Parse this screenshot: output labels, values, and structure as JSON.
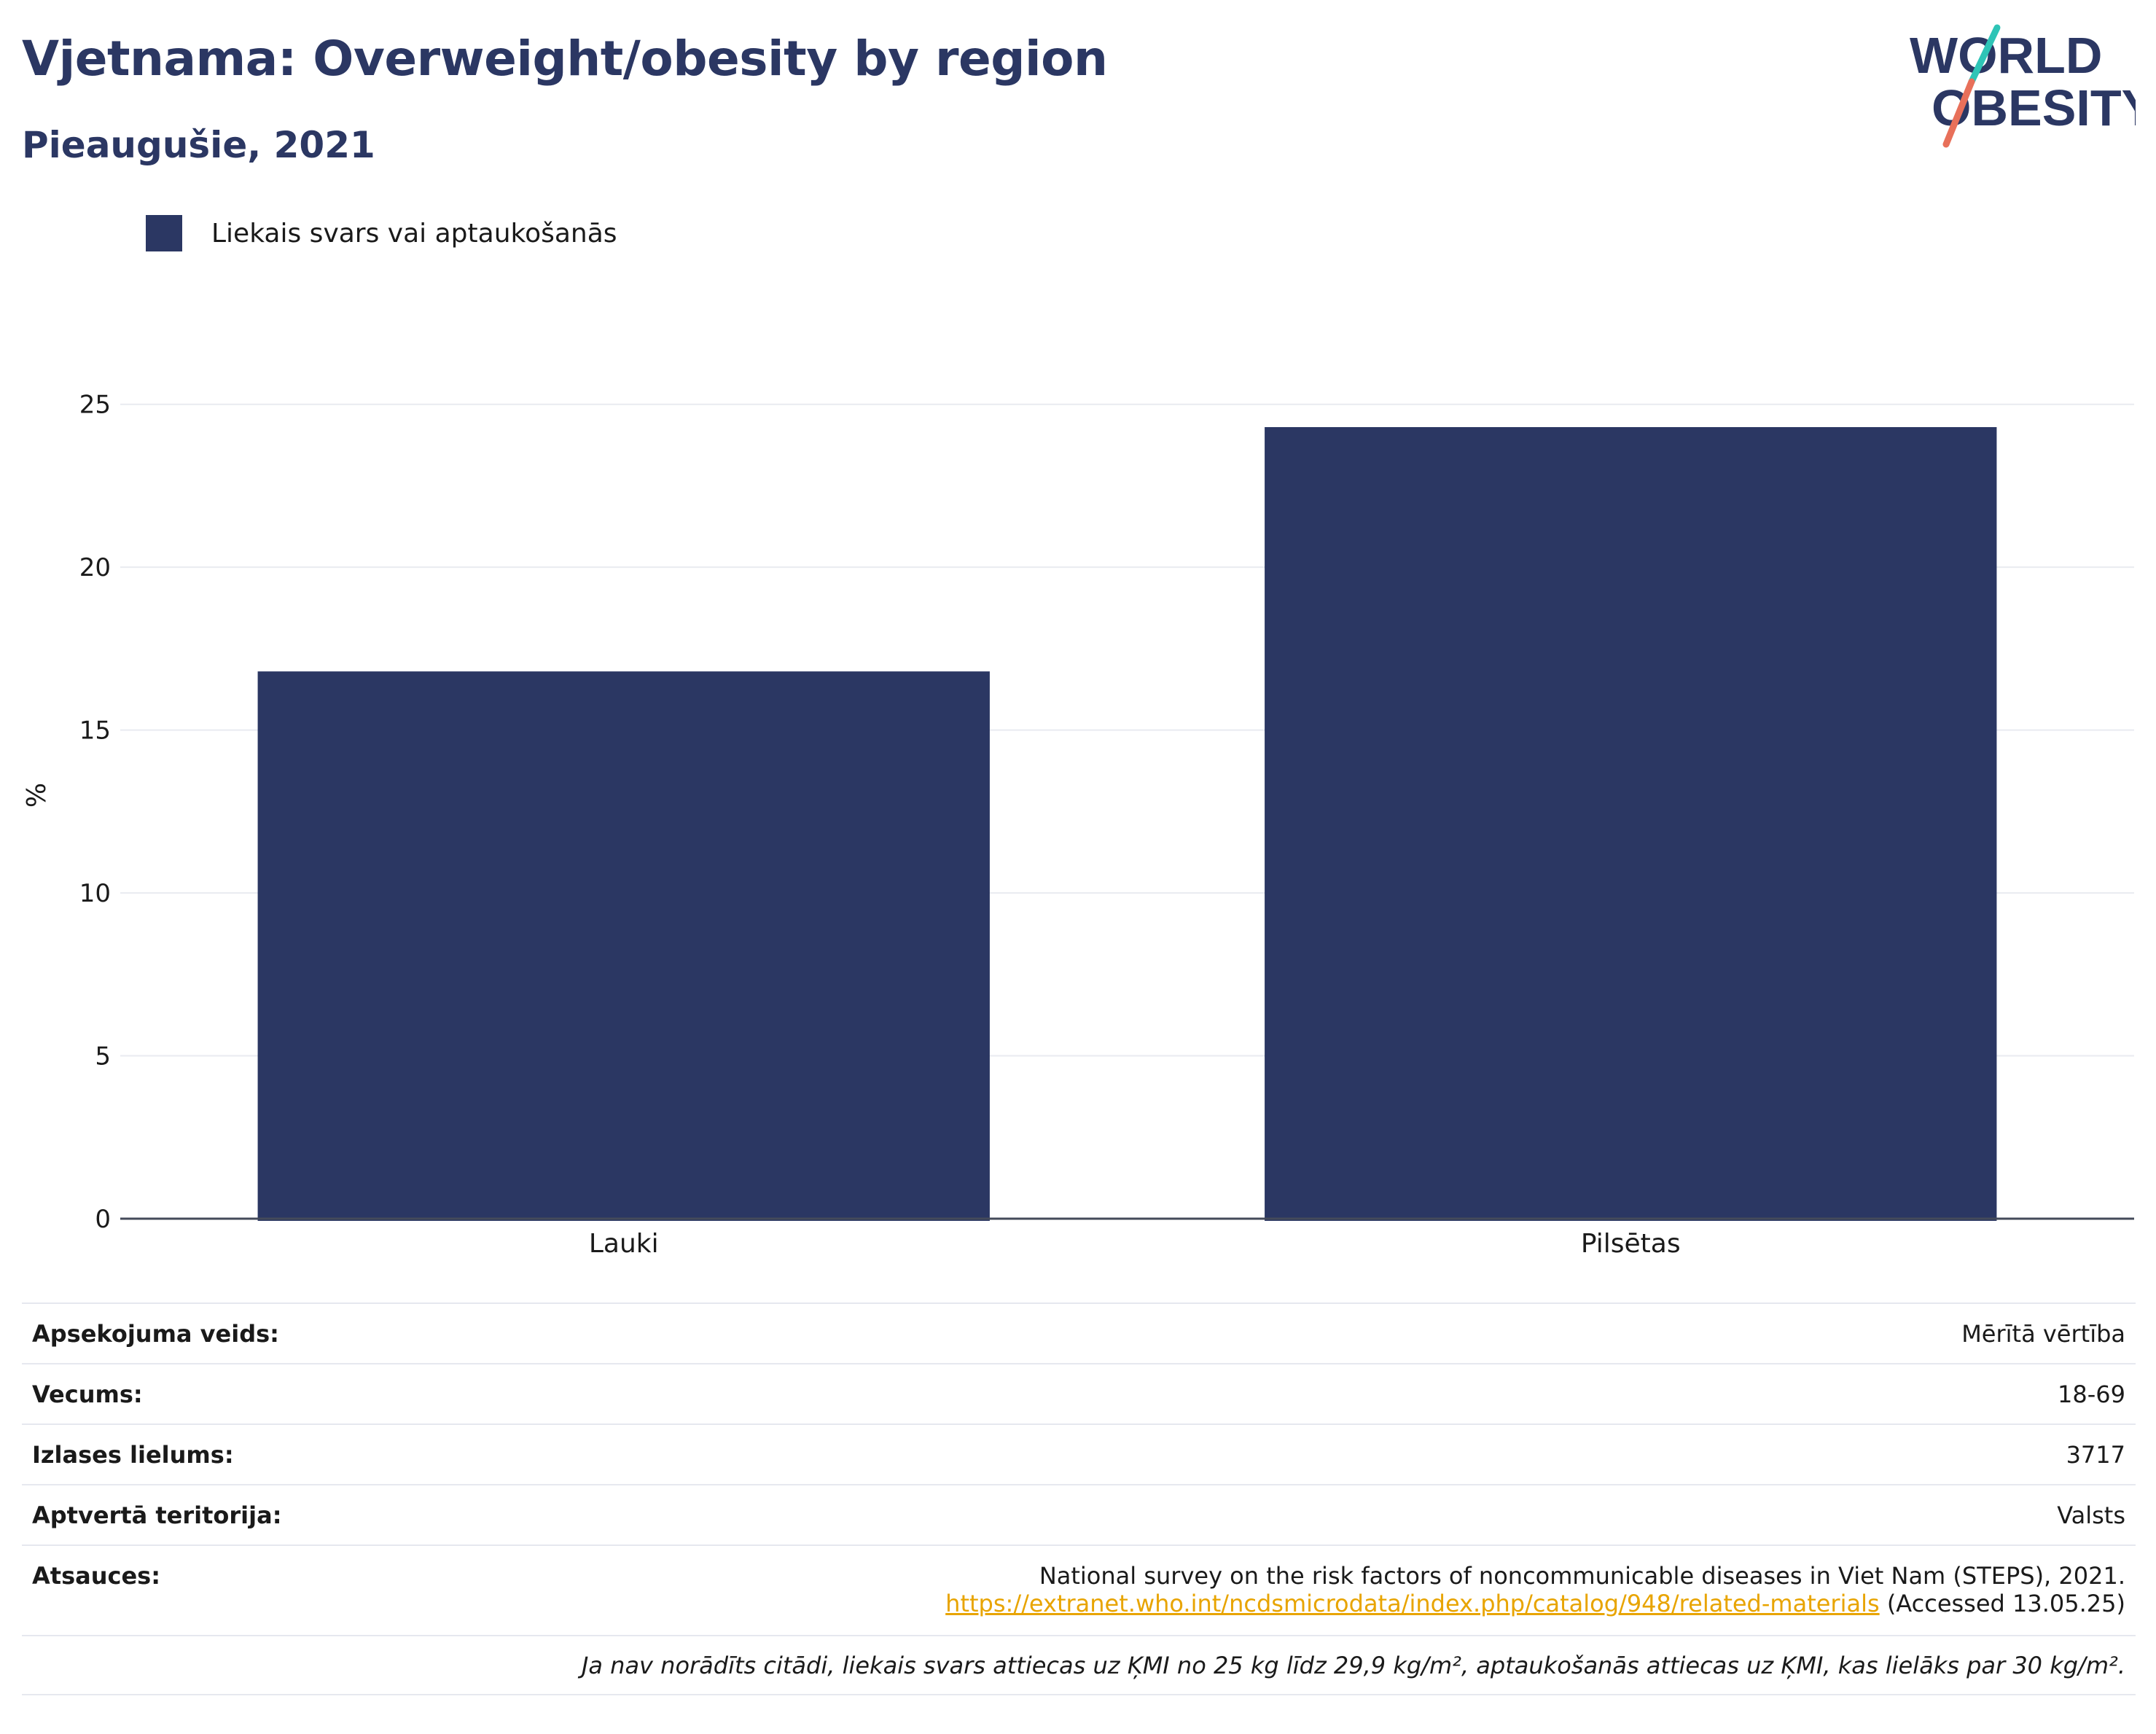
{
  "header": {
    "title": "Vjetnama: Overweight/obesity by region",
    "subtitle": "Pieaugušie, 2021"
  },
  "logo": {
    "line1": "WORLD",
    "line2": "OBESITY",
    "slash_colors": [
      "#2ec4b6",
      "#e8705a"
    ],
    "text_color": "#2b3763"
  },
  "legend": {
    "label": "Liekais svars vai aptaukošanās",
    "color": "#2b3763"
  },
  "chart_data": {
    "type": "bar",
    "categories": [
      "Lauki",
      "Pilsētas"
    ],
    "series": [
      {
        "name": "Liekais svars vai aptaukošanās",
        "values": [
          16.8,
          24.3
        ],
        "color": "#2b3763"
      }
    ],
    "ylabel": "%",
    "xlabel": "",
    "ylim": [
      0,
      26
    ],
    "yticks": [
      0,
      5,
      10,
      15,
      20,
      25
    ],
    "grid": true
  },
  "info": {
    "survey_type_label": "Apsekojuma veids:",
    "survey_type_value": "Mērītā vērtība",
    "age_label": "Vecums:",
    "age_value": "18-69",
    "sample_label": "Izlases lielums:",
    "sample_value": "3717",
    "coverage_label": "Aptvertā teritorija:",
    "coverage_value": "Valsts",
    "refs_label": "Atsauces:",
    "refs_line1": "National survey on the risk factors of noncommunicable diseases in Viet Nam (STEPS), 2021.",
    "refs_link": "https://extranet.who.int/ncdsmicrodata/index.php/catalog/948/related-materials",
    "refs_accessed": " (Accessed 13.05.25)",
    "note": "Ja nav norādīts citādi, liekais svars attiecas uz ĶMI no 25 kg līdz 29,9 kg/m², aptaukošanās attiecas uz ĶMI, kas lielāks par 30 kg/m²."
  }
}
